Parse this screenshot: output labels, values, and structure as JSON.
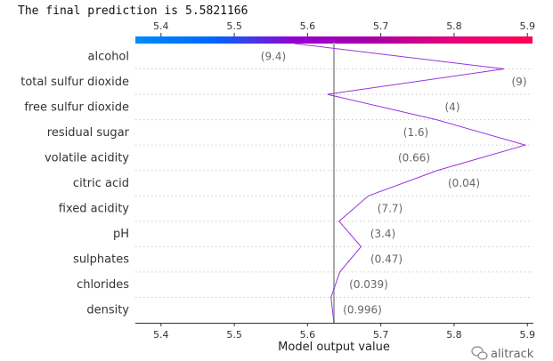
{
  "chart_data": {
    "type": "line",
    "subtype": "shap-decision-plot",
    "title_prefix": "The final prediction is",
    "final_prediction": "5.5821166",
    "xlabel": "Model output value",
    "xlim": [
      5.365,
      5.907
    ],
    "xticks": [
      "5.4",
      "5.5",
      "5.6",
      "5.7",
      "5.8",
      "5.9"
    ],
    "xtick_values": [
      5.4,
      5.5,
      5.6,
      5.7,
      5.8,
      5.9
    ],
    "base_value": 5.636,
    "grid": "dotted horizontal",
    "colormap": [
      "#008bfa",
      "#0066ff",
      "#9400d3",
      "#a900a5",
      "#e8007a",
      "#ff0052"
    ],
    "line_color": "#9932e0",
    "features": [
      {
        "name": "alcohol",
        "value_label": "(9.4)",
        "output_after": 5.582
      },
      {
        "name": "total sulfur dioxide",
        "value_label": "(9)",
        "output_after": 5.868
      },
      {
        "name": "free sulfur dioxide",
        "value_label": "(4)",
        "output_after": 5.627
      },
      {
        "name": "residual sugar",
        "value_label": "(1.6)",
        "output_after": 5.776
      },
      {
        "name": "volatile acidity",
        "value_label": "(0.66)",
        "output_after": 5.897
      },
      {
        "name": "citric acid",
        "value_label": "(0.04)",
        "output_after": 5.777
      },
      {
        "name": "fixed acidity",
        "value_label": "(7.7)",
        "output_after": 5.683
      },
      {
        "name": "pH",
        "value_label": "(3.4)",
        "output_after": 5.643
      },
      {
        "name": "sulphates",
        "value_label": "(0.47)",
        "output_after": 5.673
      },
      {
        "name": "chlorides",
        "value_label": "(0.039)",
        "output_after": 5.644
      },
      {
        "name": "density",
        "value_label": "(0.996)",
        "output_after": 5.632
      }
    ]
  },
  "watermark": "alitrack"
}
